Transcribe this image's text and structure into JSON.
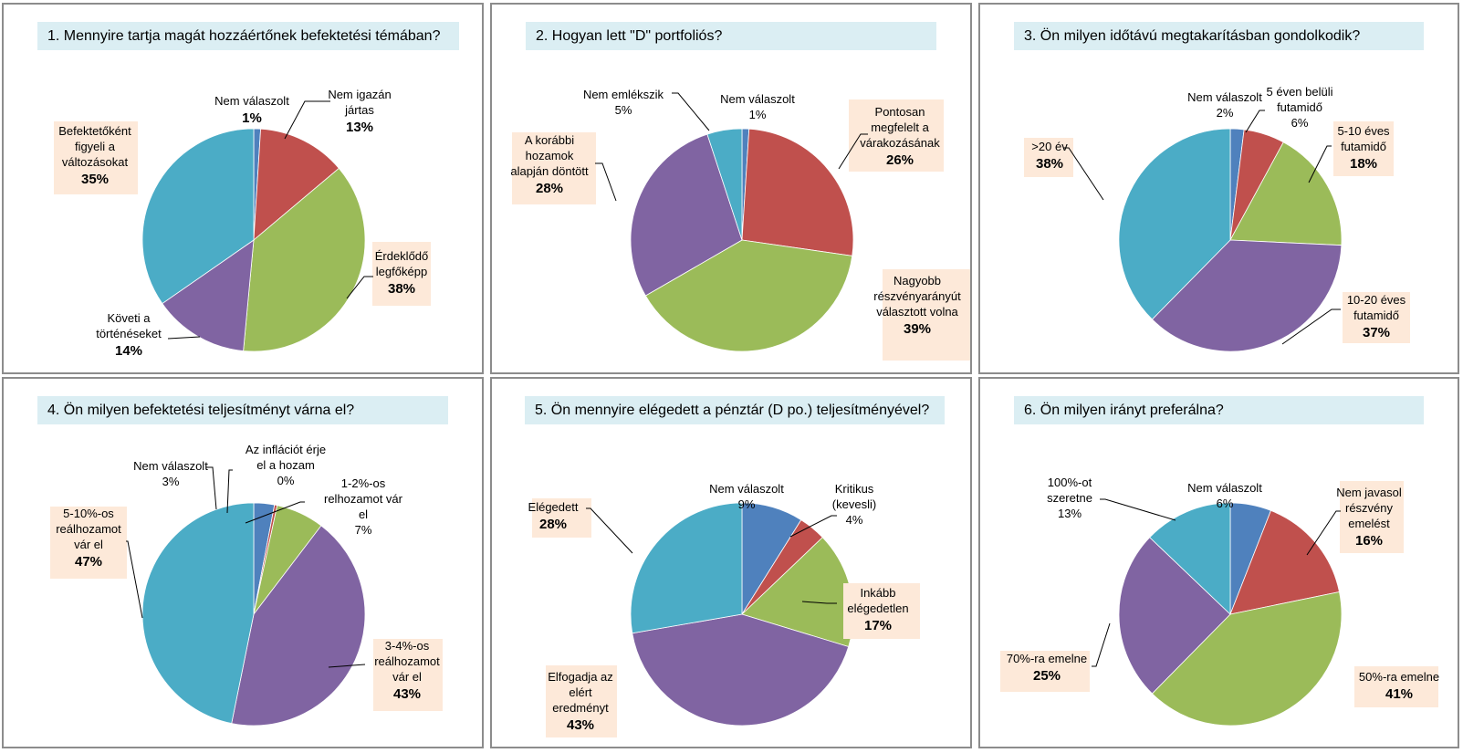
{
  "chart_data": [
    {
      "type": "pie",
      "title": "1. Mennyire tartja magát hozzáértőnek befektetési témában?",
      "slices": [
        {
          "label": "Nem válaszolt",
          "value": 1,
          "pct_text": "1%",
          "color": "#4f81bd",
          "highlight": false,
          "bold": true
        },
        {
          "label": "Nem igazán jártas",
          "value": 13,
          "pct_text": "13%",
          "color": "#c0504d",
          "highlight": false,
          "bold": true
        },
        {
          "label": "Érdeklődő legfőképp",
          "value": 38,
          "pct_text": "38%",
          "color": "#9bbb59",
          "highlight": true,
          "bold": true
        },
        {
          "label": "Követi a történéseket",
          "value": 14,
          "pct_text": "14%",
          "color": "#8064a2",
          "highlight": false,
          "bold": true
        },
        {
          "label": "Befektetőként figyeli a változásokat",
          "value": 35,
          "pct_text": "35%",
          "color": "#4bacc6",
          "highlight": true,
          "bold": true
        }
      ]
    },
    {
      "type": "pie",
      "title": "2. Hogyan lett \"D\" portfoliós?",
      "slices": [
        {
          "label": "Nem válaszolt",
          "value": 1,
          "pct_text": "1%",
          "color": "#4f81bd",
          "highlight": false,
          "bold": false
        },
        {
          "label": "Pontosan megfelelt a várakozásának",
          "value": 26,
          "pct_text": "26%",
          "color": "#c0504d",
          "highlight": true,
          "bold": true
        },
        {
          "label": "Nagyobb részvényarányút választott volna",
          "value": 39,
          "pct_text": "39%",
          "color": "#9bbb59",
          "highlight": true,
          "bold": true
        },
        {
          "label": "A korábbi hozamok alapján döntött",
          "value": 28,
          "pct_text": "28%",
          "color": "#8064a2",
          "highlight": true,
          "bold": true
        },
        {
          "label": "Nem emlékszik",
          "value": 5,
          "pct_text": "5%",
          "color": "#4bacc6",
          "highlight": false,
          "bold": false
        }
      ]
    },
    {
      "type": "pie",
      "title": "3. Ön milyen időtávú megtakarításban gondolkodik?",
      "slices": [
        {
          "label": "Nem válaszolt",
          "value": 2,
          "pct_text": "2%",
          "color": "#4f81bd",
          "highlight": false,
          "bold": false
        },
        {
          "label": "5 éven belüli futamidő",
          "value": 6,
          "pct_text": "6%",
          "color": "#c0504d",
          "highlight": false,
          "bold": false
        },
        {
          "label": "5-10 éves futamidő",
          "value": 18,
          "pct_text": "18%",
          "color": "#9bbb59",
          "highlight": true,
          "bold": true
        },
        {
          "label": "10-20 éves futamidő",
          "value": 37,
          "pct_text": "37%",
          "color": "#8064a2",
          "highlight": true,
          "bold": true
        },
        {
          "label": ">20 év",
          "value": 38,
          "pct_text": "38%",
          "color": "#4bacc6",
          "highlight": true,
          "bold": true
        }
      ]
    },
    {
      "type": "pie",
      "title": "4. Ön milyen befektetési teljesítményt várna el?",
      "slices": [
        {
          "label": "Nem válaszolt",
          "value": 3,
          "pct_text": "3%",
          "color": "#4f81bd",
          "highlight": false,
          "bold": false
        },
        {
          "label": "Az inflációt érje el a hozam",
          "value": 0,
          "pct_text": "0%",
          "color": "#c0504d",
          "highlight": false,
          "bold": false
        },
        {
          "label": "1-2%-os relhozamot vár el",
          "value": 7,
          "pct_text": "7%",
          "color": "#9bbb59",
          "highlight": false,
          "bold": false
        },
        {
          "label": "3-4%-os reálhozamot vár el",
          "value": 43,
          "pct_text": "43%",
          "color": "#8064a2",
          "highlight": true,
          "bold": true
        },
        {
          "label": "5-10%-os reálhozamot vár el",
          "value": 47,
          "pct_text": "47%",
          "color": "#4bacc6",
          "highlight": true,
          "bold": true
        }
      ]
    },
    {
      "type": "pie",
      "title": "5. Ön mennyire elégedett a pénztár (D po.) teljesítményével?",
      "slices": [
        {
          "label": "Nem válaszolt",
          "value": 9,
          "pct_text": "9%",
          "color": "#4f81bd",
          "highlight": false,
          "bold": false
        },
        {
          "label": "Kritikus (kevesli)",
          "value": 4,
          "pct_text": "4%",
          "color": "#c0504d",
          "highlight": false,
          "bold": false
        },
        {
          "label": "Inkább elégedetlen",
          "value": 17,
          "pct_text": "17%",
          "color": "#9bbb59",
          "highlight": true,
          "bold": true
        },
        {
          "label": "Elfogadja az elért eredményt",
          "value": 43,
          "pct_text": "43%",
          "color": "#8064a2",
          "highlight": true,
          "bold": true
        },
        {
          "label": "Elégedett",
          "value": 28,
          "pct_text": "28%",
          "color": "#4bacc6",
          "highlight": true,
          "bold": true
        }
      ]
    },
    {
      "type": "pie",
      "title": "6. Ön milyen irányt preferálna?",
      "slices": [
        {
          "label": "Nem válaszolt",
          "value": 6,
          "pct_text": "6%",
          "color": "#4f81bd",
          "highlight": false,
          "bold": false
        },
        {
          "label": "Nem javasol részvény emelést",
          "value": 16,
          "pct_text": "16%",
          "color": "#c0504d",
          "highlight": true,
          "bold": true
        },
        {
          "label": "50%-ra emelne",
          "value": 41,
          "pct_text": "41%",
          "color": "#9bbb59",
          "highlight": true,
          "bold": true
        },
        {
          "label": "70%-ra emelne",
          "value": 25,
          "pct_text": "25%",
          "color": "#8064a2",
          "highlight": true,
          "bold": true
        },
        {
          "label": "100%-ot szeretne",
          "value": 13,
          "pct_text": "13%",
          "color": "#4bacc6",
          "highlight": false,
          "bold": false
        }
      ]
    }
  ],
  "colors": {
    "label_highlight_bg": "#fde9d9",
    "title_bg": "#dbeef3",
    "panel_border": "#8c8c8c"
  }
}
